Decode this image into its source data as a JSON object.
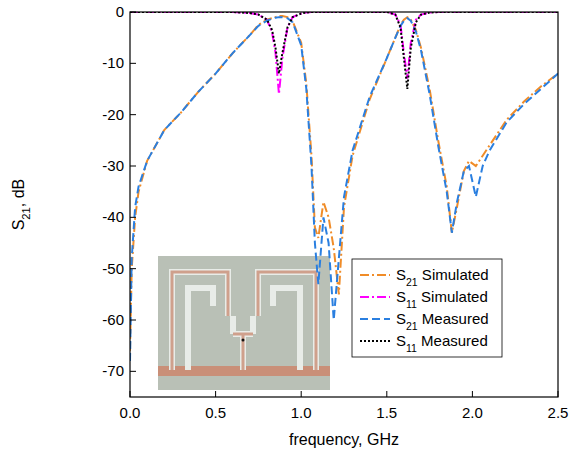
{
  "chart_data": {
    "type": "line",
    "x_label": "frequency, GHz",
    "y_label": "S21, dB",
    "xlim": [
      0,
      2.5
    ],
    "ylim": [
      -75,
      0
    ],
    "xticks": [
      {
        "value": 0,
        "label": "0.0"
      },
      0.5,
      {
        "value": 1,
        "label": "1.0"
      },
      1.5,
      {
        "value": 2,
        "label": "2.0"
      },
      2.5
    ],
    "yticks": [
      -70,
      -60,
      -50,
      -40,
      -30,
      -20,
      -10,
      0
    ],
    "grid": false,
    "legend": "bottom-right",
    "x": [
      0,
      0.01,
      0.03,
      0.05,
      0.1,
      0.2,
      0.3,
      0.4,
      0.5,
      0.6,
      0.7,
      0.75,
      0.8,
      0.83,
      0.85,
      0.87,
      0.89,
      0.92,
      0.95,
      1.0,
      1.03,
      1.06,
      1.08,
      1.1,
      1.13,
      1.16,
      1.19,
      1.22,
      1.25,
      1.3,
      1.4,
      1.5,
      1.55,
      1.58,
      1.6,
      1.62,
      1.64,
      1.67,
      1.7,
      1.75,
      1.8,
      1.85,
      1.88,
      1.91,
      1.95,
      1.98,
      2.02,
      2.06,
      2.1,
      2.2,
      2.3,
      2.4,
      2.5
    ],
    "series": [
      {
        "name": "S21 Simulated",
        "color": "#f08c28",
        "line_style": "dashdot",
        "values": [
          -66,
          -50,
          -40,
          -35,
          -29,
          -23,
          -19.5,
          -15.5,
          -12,
          -8,
          -4.5,
          -2.5,
          -1.5,
          -1.2,
          -1,
          -0.8,
          -0.8,
          -1,
          -1.8,
          -6,
          -14,
          -28,
          -42,
          -44,
          -37,
          -40,
          -46,
          -55,
          -38,
          -28,
          -17,
          -9,
          -5,
          -2.5,
          -1.5,
          -1,
          -1.5,
          -3.5,
          -7,
          -15,
          -25,
          -34,
          -43,
          -38,
          -31,
          -29,
          -30,
          -28,
          -26,
          -21,
          -17.5,
          -14.5,
          -12
        ]
      },
      {
        "name": "S11 Simulated",
        "color": "#ff00ff",
        "line_style": "dashdot",
        "values": [
          0,
          0,
          0,
          0,
          0,
          0,
          0,
          0,
          0,
          0,
          -0.2,
          -0.5,
          -1.5,
          -4,
          -8,
          -16,
          -9,
          -3,
          -1,
          -0.3,
          -0.1,
          0,
          0,
          0,
          0,
          0,
          0,
          0,
          0,
          0,
          0,
          0,
          -0.5,
          -2.5,
          -8,
          -13,
          -6,
          -1.5,
          -0.5,
          -0.1,
          0,
          0,
          0,
          0,
          0,
          0,
          0,
          0,
          0,
          0,
          0,
          0,
          0
        ]
      },
      {
        "name": "S21 Measured",
        "color": "#2a7fe0",
        "line_style": "dashed",
        "values": [
          -68,
          -48,
          -38,
          -34,
          -29,
          -23,
          -19.5,
          -15.5,
          -12,
          -8,
          -4.5,
          -2.7,
          -1.7,
          -1.3,
          -1.1,
          -1,
          -1,
          -1.2,
          -2,
          -6.5,
          -15,
          -30,
          -45,
          -53,
          -40,
          -45,
          -60,
          -48,
          -36,
          -27,
          -16.5,
          -9,
          -5,
          -2.7,
          -1.7,
          -1.2,
          -1.7,
          -3.8,
          -7.5,
          -16,
          -26,
          -35,
          -43,
          -37,
          -31,
          -30,
          -36,
          -30,
          -27,
          -21.5,
          -18,
          -15,
          -12
        ]
      },
      {
        "name": "S11 Measured",
        "color": "#000000",
        "line_style": "dotted",
        "values": [
          0,
          0,
          0,
          0,
          0,
          0,
          0,
          0,
          0,
          0,
          -0.2,
          -0.5,
          -1.5,
          -3.5,
          -7,
          -12,
          -8,
          -3,
          -1,
          -0.3,
          -0.1,
          0,
          0,
          0,
          0,
          0,
          0,
          0,
          0,
          0,
          0,
          0,
          -0.5,
          -3,
          -9,
          -15,
          -7,
          -2,
          -0.5,
          -0.1,
          0,
          0,
          0,
          0,
          0,
          0,
          0,
          0,
          0,
          0,
          0,
          0,
          0
        ]
      }
    ]
  }
}
